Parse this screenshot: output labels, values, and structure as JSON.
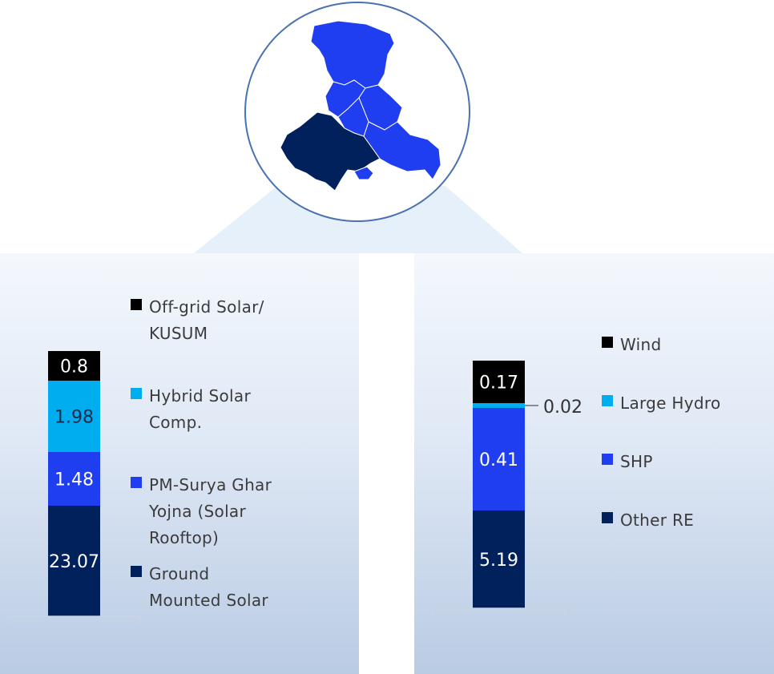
{
  "chart_data": [
    {
      "type": "bar",
      "stacked": true,
      "categories": [
        ""
      ],
      "series": [
        {
          "name": "Ground Mounted Solar",
          "values": [
            23.07
          ],
          "color": "#00215c"
        },
        {
          "name": "PM-Surya Ghar Yojna (Solar Rooftop)",
          "values": [
            1.48
          ],
          "color": "#1f3ef0"
        },
        {
          "name": "Hybrid Solar Comp.",
          "values": [
            1.98
          ],
          "color": "#00aeef"
        },
        {
          "name": "Off-grid Solar/ KUSUM",
          "values": [
            0.8
          ],
          "color": "#000000"
        }
      ],
      "legend_lines": [
        [
          "Off-grid Solar/",
          "KUSUM"
        ],
        [
          "Hybrid Solar",
          "Comp."
        ],
        [
          "PM-Surya Ghar",
          "Yojna (Solar",
          "Rooftop)"
        ],
        [
          "Ground",
          "Mounted Solar"
        ]
      ],
      "labels": [
        "23.07",
        "1.48",
        "1.98",
        "0.8"
      ],
      "title": "",
      "xlabel": "",
      "ylabel": "",
      "grid": false
    },
    {
      "type": "bar",
      "stacked": true,
      "categories": [
        ""
      ],
      "series": [
        {
          "name": "Wind",
          "values": [
            5.19
          ],
          "color": "#00215c"
        },
        {
          "name": "Large Hydro",
          "values": [
            0.41
          ],
          "color": "#1f3ef0"
        },
        {
          "name": "SHP",
          "values": [
            0.02
          ],
          "color": "#00aeef"
        },
        {
          "name": "Other RE",
          "values": [
            0.17
          ],
          "color": "#000000"
        }
      ],
      "legend_lines": [
        [
          "Wind"
        ],
        [
          "Large Hydro"
        ],
        [
          "SHP"
        ],
        [
          "Other RE"
        ]
      ],
      "labels": [
        "5.19",
        "0.41",
        "0.02",
        "0.17"
      ],
      "title": "",
      "xlabel": "",
      "ylabel": "",
      "grid": false
    }
  ],
  "map": {
    "colors": {
      "states": "#1f3ef0",
      "highlight": "#00215c",
      "border": "#ffffff",
      "circle": "#4a72b3"
    }
  }
}
